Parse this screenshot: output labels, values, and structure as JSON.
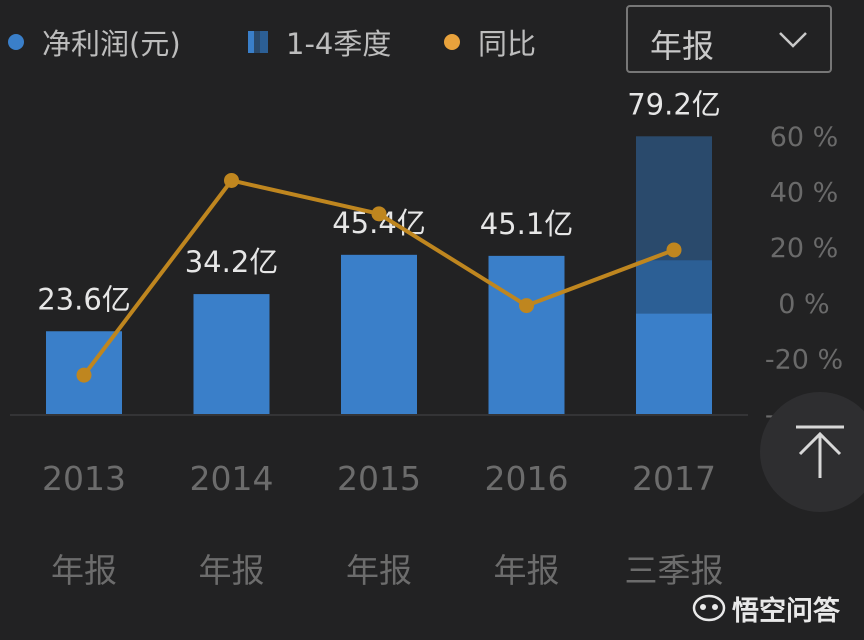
{
  "legend": {
    "items": [
      {
        "label": "净利润(元)",
        "color": "#3a7fc9",
        "shape": "dot"
      },
      {
        "label": "1-4季度",
        "color": "#3a7fc9",
        "shape": "square"
      },
      {
        "label": "同比",
        "color": "#e8a23c",
        "shape": "dot"
      }
    ]
  },
  "period_select": {
    "value": "年报",
    "icon": "chevron-down-icon"
  },
  "scroll_top_icon": "arrow-up-icon",
  "watermark": {
    "text": "悟空问答",
    "icon": "wukong-logo"
  },
  "colors": {
    "bar": "#3a7fc9",
    "bar_stack_mid": "#2c5f95",
    "bar_stack_top": "#2a4a6c",
    "line": "#bf861f",
    "background": "#222223"
  },
  "chart_data": {
    "type": "bar",
    "categories": [
      "2013",
      "2014",
      "2015",
      "2016",
      "2017"
    ],
    "category_sublabels": [
      "年报",
      "年报",
      "年报",
      "年报",
      "三季报"
    ],
    "series": [
      {
        "name": "净利润(元)",
        "type": "bar",
        "axis": "left",
        "values": [
          23.6,
          34.2,
          45.4,
          45.1,
          79.2
        ],
        "value_labels": [
          "23.6亿",
          "34.2亿",
          "45.4亿",
          "45.1亿",
          "79.2亿"
        ],
        "stack_segments": [
          [
            23.6
          ],
          [
            34.2
          ],
          [
            45.4
          ],
          [
            45.1
          ],
          [
            28.7,
            15.2,
            35.3
          ]
        ]
      },
      {
        "name": "同比",
        "type": "line",
        "axis": "right",
        "values": [
          -26,
          44,
          32,
          -1,
          19
        ]
      }
    ],
    "y_left_range": [
      0,
      81
    ],
    "y_right": {
      "ticks": [
        60,
        40,
        20,
        0,
        -20,
        -40
      ],
      "tick_labels": [
        "60 %",
        "40 %",
        "20 %",
        "0 %",
        "-20 %",
        "-40 %"
      ],
      "range": [
        -40,
        60
      ]
    },
    "legend_position": "top-left",
    "grid": false
  }
}
